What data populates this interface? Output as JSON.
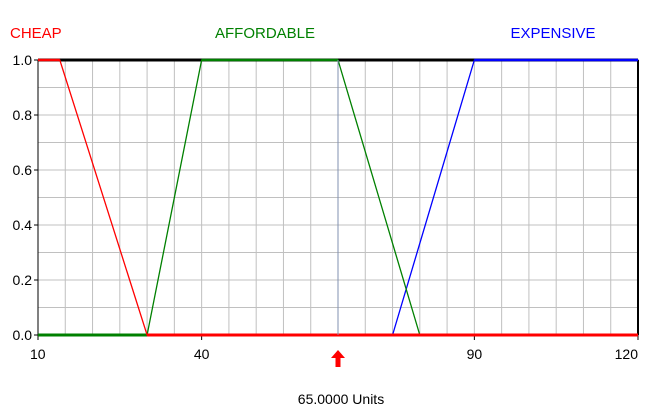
{
  "chart_data": {
    "type": "line",
    "xlim": [
      10,
      120
    ],
    "ylim": [
      0,
      1
    ],
    "x_ticks": [
      "10",
      "40",
      "90",
      "120"
    ],
    "x_tick_values": [
      10,
      40,
      90,
      120
    ],
    "y_ticks": [
      "0.0",
      "0.2",
      "0.4",
      "0.6",
      "0.8",
      "1.0"
    ],
    "y_tick_values": [
      0,
      0.2,
      0.4,
      0.6,
      0.8,
      1.0
    ],
    "grid": true,
    "legend_placement": "top",
    "series": [
      {
        "name": "CHEAP",
        "color": "#ff0000",
        "x": [
          10,
          14,
          30,
          120
        ],
        "y": [
          1,
          1,
          0,
          0
        ]
      },
      {
        "name": "AFFORDABLE",
        "color": "#008000",
        "x": [
          10,
          30,
          40,
          65,
          80,
          120
        ],
        "y": [
          0,
          0,
          1,
          1,
          0,
          0
        ]
      },
      {
        "name": "EXPENSIVE",
        "color": "#0000ff",
        "x": [
          10,
          75,
          90,
          120
        ],
        "y": [
          0,
          0,
          1,
          1
        ]
      }
    ],
    "marker": {
      "x": 65,
      "color": "#ff0000"
    },
    "readout_label": "65.0000 Units"
  },
  "colors": {
    "background": "#ffffff",
    "grid": "#c0c0c0",
    "plot_frame": "#000000",
    "marker_line": "#8090b0"
  }
}
